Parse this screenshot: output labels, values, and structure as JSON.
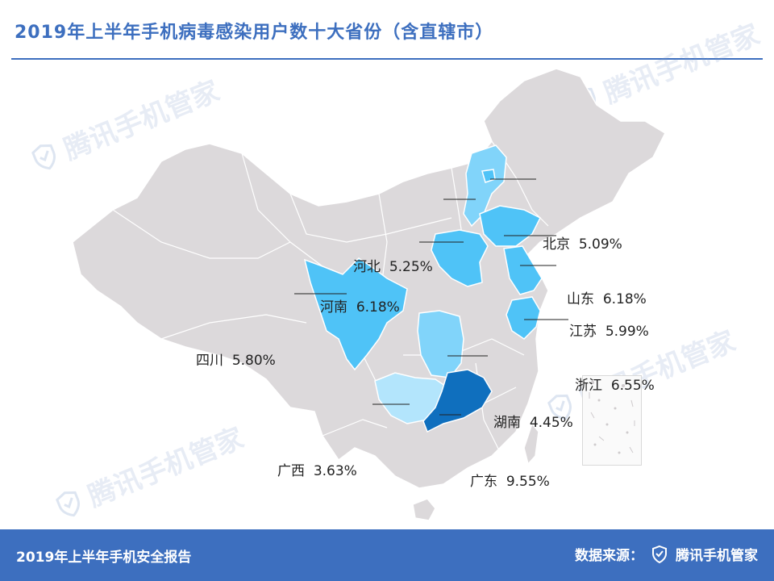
{
  "title": "2019年上半年手机病毒感染用户数十大省份（含直辖市）",
  "watermark": "腾讯手机管家",
  "footer": {
    "report": "2019年上半年手机安全报告",
    "source_label": "数据来源：",
    "source_brand": "腾讯手机管家"
  },
  "colors": {
    "accent": "#3d6fbf",
    "land": "#dcd9db",
    "top": "#0f6fbe",
    "high": "#4fc3f7",
    "mid": "#81d4fa",
    "low": "#b3e5fc"
  },
  "regions": [
    {
      "name": "北京",
      "value": "5.09%",
      "level": "high"
    },
    {
      "name": "河北",
      "value": "5.25%",
      "level": "high"
    },
    {
      "name": "山东",
      "value": "6.18%",
      "level": "high"
    },
    {
      "name": "河南",
      "value": "6.18%",
      "level": "high"
    },
    {
      "name": "江苏",
      "value": "5.99%",
      "level": "high"
    },
    {
      "name": "四川",
      "value": "5.80%",
      "level": "high"
    },
    {
      "name": "浙江",
      "value": "6.55%",
      "level": "high"
    },
    {
      "name": "湖南",
      "value": "4.45%",
      "level": "mid"
    },
    {
      "name": "广西",
      "value": "3.63%",
      "level": "low"
    },
    {
      "name": "广东",
      "value": "9.55%",
      "level": "top"
    }
  ]
}
